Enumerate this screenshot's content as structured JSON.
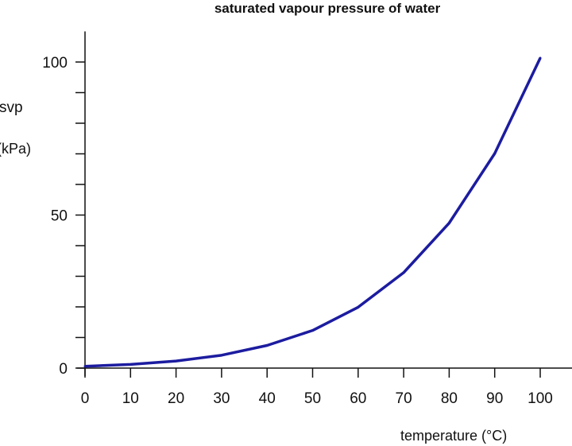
{
  "chart_data": {
    "type": "line",
    "title": "saturated vapour pressure of water",
    "xlabel": "temperature (°C)",
    "ylabel_line1": "svp",
    "ylabel_line2": "(kPa)",
    "xlim": [
      0,
      107
    ],
    "ylim": [
      0,
      110
    ],
    "x_ticks": [
      0,
      10,
      20,
      30,
      40,
      50,
      60,
      70,
      80,
      90,
      100
    ],
    "x_tick_labels": [
      "0",
      "10",
      "20",
      "30",
      "40",
      "50",
      "60",
      "70",
      "80",
      "90",
      "100"
    ],
    "y_minor_ticks": [
      10,
      20,
      30,
      40,
      60,
      70,
      80,
      90
    ],
    "y_ticks": [
      0,
      50,
      100
    ],
    "y_tick_labels": [
      "0",
      "50",
      "100"
    ],
    "grid": false,
    "line_color": "#1c1ca0",
    "series": [
      {
        "x": [
          0,
          10,
          20,
          30,
          40,
          50,
          60,
          70,
          80,
          90,
          100
        ],
        "y": [
          0.6,
          1.2,
          2.3,
          4.2,
          7.4,
          12.3,
          19.9,
          31.2,
          47.4,
          70.1,
          101.3
        ]
      }
    ]
  }
}
